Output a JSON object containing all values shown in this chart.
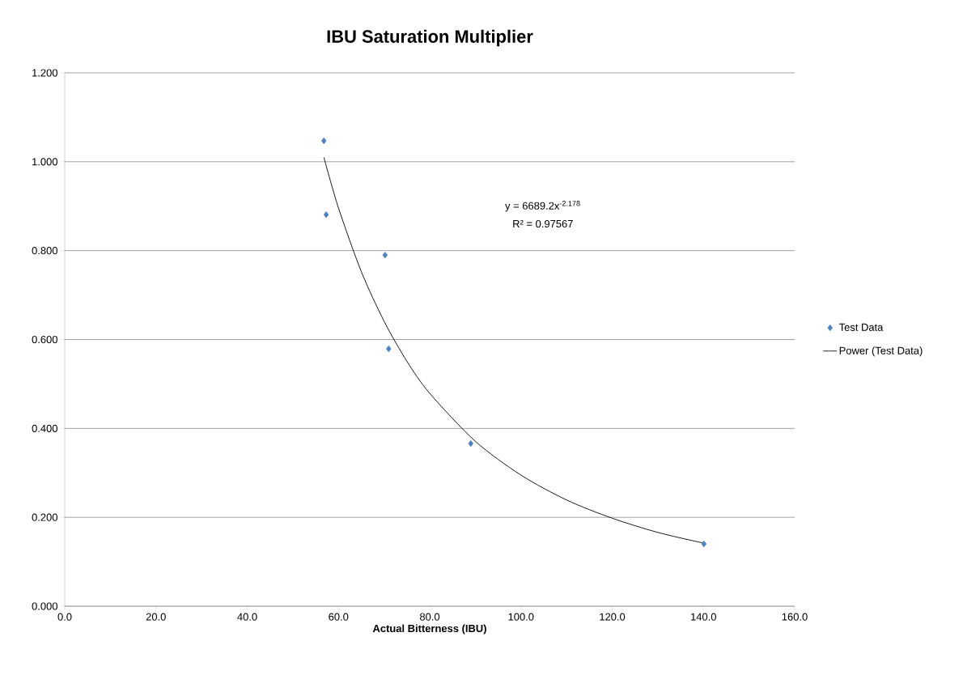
{
  "chart_data": {
    "type": "scatter",
    "title": "IBU Saturation Multiplier",
    "xlabel": "Actual Bitterness (IBU)",
    "series": [
      {
        "name": "Test Data",
        "type": "scatter",
        "marker": "diamond",
        "color": "#4f81bd",
        "x": [
          56.8,
          57.3,
          70.2,
          71.0,
          89.0,
          140.1
        ],
        "values": [
          1.047,
          0.881,
          0.79,
          0.579,
          0.366,
          0.14
        ]
      },
      {
        "name": "Power (Test Data)",
        "type": "line",
        "marker": "none",
        "color": "#000000",
        "x": [
          56.8,
          60,
          65,
          70,
          75,
          80,
          90,
          100,
          110,
          120,
          130,
          140
        ],
        "values": [
          1.01,
          0.896,
          0.753,
          0.641,
          0.551,
          0.479,
          0.371,
          0.295,
          0.239,
          0.198,
          0.166,
          0.142
        ]
      }
    ],
    "annotations": [
      "y = 6689.2x$^{-2.178}$",
      "R² = 0.97567"
    ],
    "xlim": [
      0,
      160
    ],
    "ylim": [
      0,
      1.2
    ],
    "xticks": [
      {
        "value": 0,
        "label": "0.0"
      },
      {
        "value": 20,
        "label": "20.0"
      },
      {
        "value": 40,
        "label": "40.0"
      },
      {
        "value": 60,
        "label": "60.0"
      },
      {
        "value": 80,
        "label": "80.0"
      },
      {
        "value": 100,
        "label": "100.0"
      },
      {
        "value": 120,
        "label": "120.0"
      },
      {
        "value": 140,
        "label": "140.0"
      },
      {
        "value": 160,
        "label": "160.0"
      }
    ],
    "yticks": [
      {
        "value": 0,
        "label": "0.000"
      },
      {
        "value": 0.2,
        "label": "0.200"
      },
      {
        "value": 0.4,
        "label": "0.400"
      },
      {
        "value": 0.6,
        "label": "0.600"
      },
      {
        "value": 0.8,
        "label": "0.800"
      },
      {
        "value": 1.0,
        "label": "1.000"
      },
      {
        "value": 1.2,
        "label": "1.200"
      }
    ],
    "grid": "y",
    "legend": "right"
  }
}
